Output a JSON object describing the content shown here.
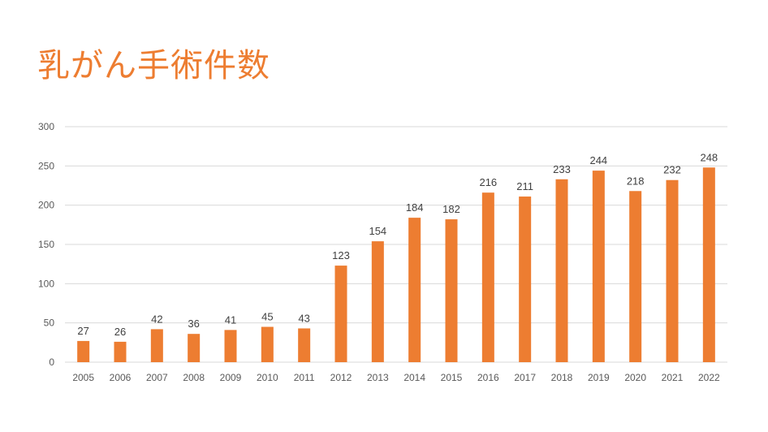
{
  "title": "乳がん手術件数",
  "chart_data": {
    "type": "bar",
    "title": "乳がん手術件数",
    "xlabel": "",
    "ylabel": "",
    "categories": [
      "2005",
      "2006",
      "2007",
      "2008",
      "2009",
      "2010",
      "2011",
      "2012",
      "2013",
      "2014",
      "2015",
      "2016",
      "2017",
      "2018",
      "2019",
      "2020",
      "2021",
      "2022"
    ],
    "values": [
      27,
      26,
      42,
      36,
      41,
      45,
      43,
      123,
      154,
      184,
      182,
      216,
      211,
      233,
      244,
      218,
      232,
      248
    ],
    "ylim": [
      0,
      300
    ],
    "yticks": [
      0,
      50,
      100,
      150,
      200,
      250,
      300
    ],
    "grid": true,
    "data_labels": true,
    "bar_color": "#ed7d31",
    "grid_color": "#d9d9d9"
  }
}
